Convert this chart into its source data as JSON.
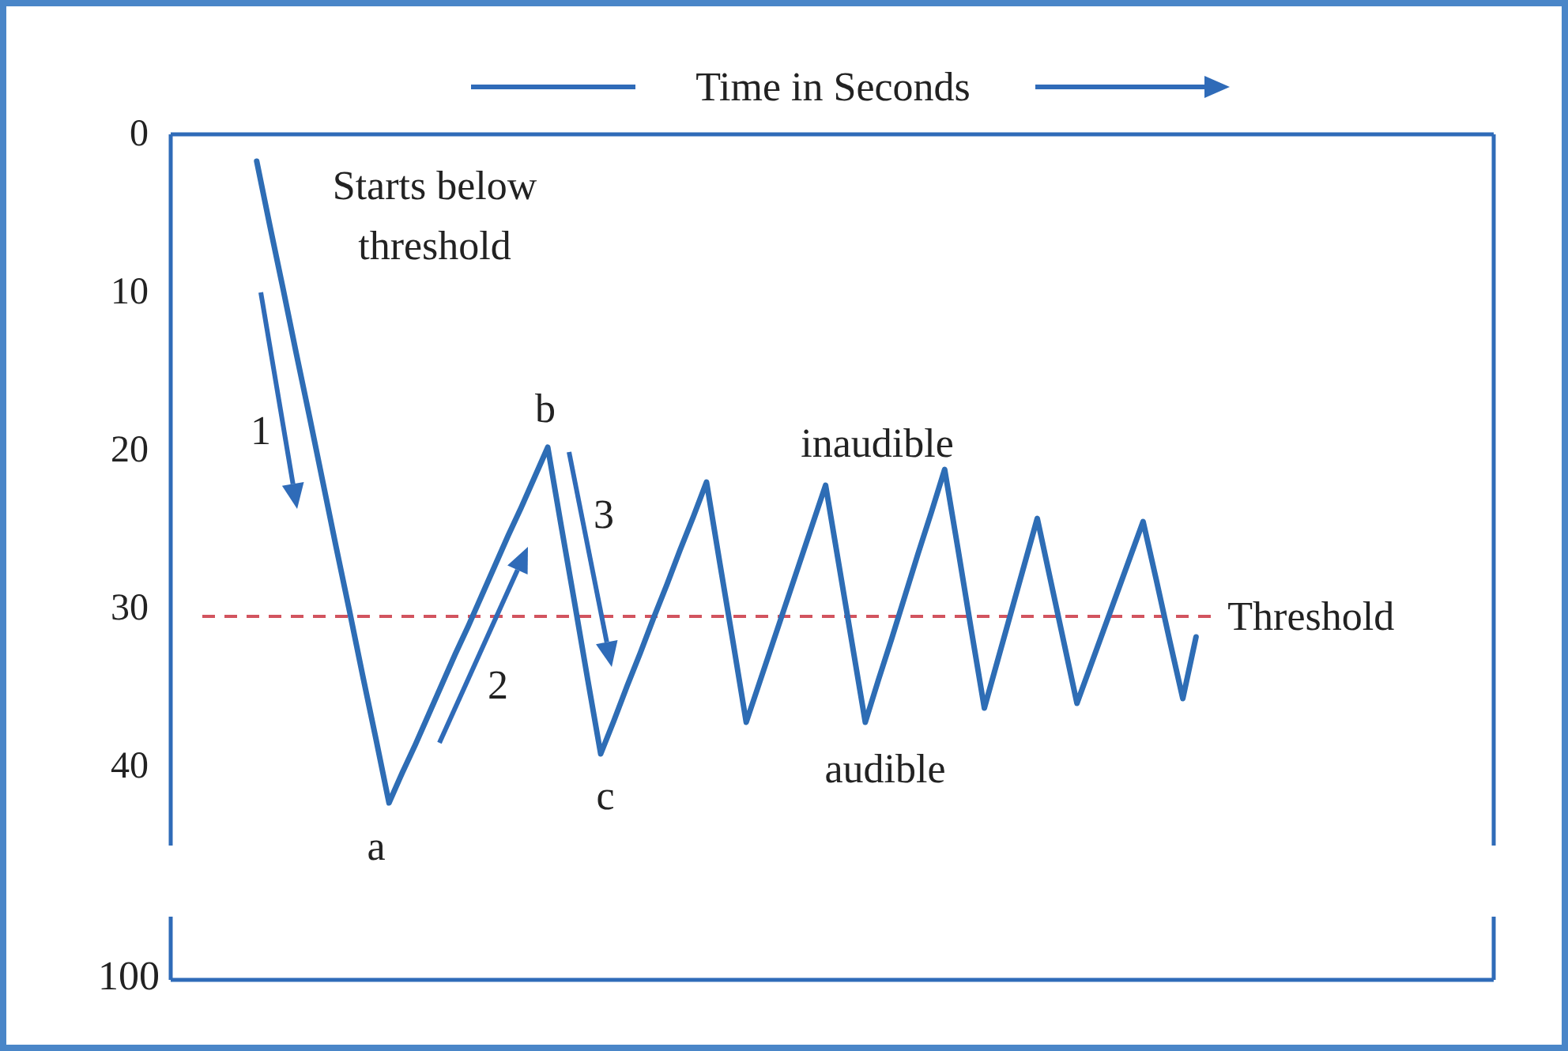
{
  "chart_data": {
    "type": "line",
    "xlabel": "Time in Seconds",
    "categories": [
      null,
      null,
      null,
      null,
      null,
      null,
      null,
      null,
      null,
      null,
      null,
      null,
      null,
      null,
      null,
      null,
      null,
      null,
      null,
      null,
      null,
      null,
      null,
      null,
      null,
      null,
      null,
      null,
      null,
      null,
      null,
      null,
      null,
      null,
      null,
      null,
      null,
      null,
      null,
      null,
      null,
      null,
      null,
      null,
      null,
      null,
      null,
      null,
      null,
      null,
      null,
      null,
      null,
      null,
      null,
      null,
      null,
      null,
      null,
      null,
      null,
      null,
      null,
      null,
      null,
      null,
      null,
      null,
      null,
      null,
      null,
      null,
      null,
      null,
      null,
      null,
      null,
      null,
      null,
      null,
      null,
      null,
      null,
      null,
      null,
      null,
      null,
      null,
      null,
      null,
      null,
      null,
      null,
      null,
      null,
      null,
      null,
      null,
      null,
      null
    ],
    "ylim": [
      45,
      0
    ],
    "yticks": [
      0,
      10,
      20,
      30,
      40
    ],
    "tick_labels": "y",
    "grid": false,
    "marker": "none",
    "line_style": "solid",
    "series": [
      {
        "color": "#2e6db5",
        "values": [
          null,
          null,
          null,
          null,
          null,
          null,
          1.7,
          5.8,
          9.8,
          13.9,
          17.9,
          22,
          26.1,
          30.1,
          34.2,
          38.2,
          42.3,
          40.4,
          38.6,
          36.7,
          34.8,
          32.9,
          31.1,
          29.2,
          27.3,
          25.4,
          23.6,
          21.7,
          19.8,
          24.7,
          29.5,
          34.4,
          39.2,
          37.1,
          34.9,
          32.8,
          30.6,
          28.5,
          26.3,
          24.2,
          22,
          27.1,
          32.1,
          37.2,
          34.7,
          32.2,
          29.7,
          27.2,
          24.7,
          22.2,
          27.2,
          32.2,
          37.2,
          34.5,
          31.9,
          29.2,
          26.5,
          23.9,
          21.2,
          26.2,
          31.3,
          36.3,
          33.3,
          30.3,
          27.3,
          24.3,
          28.2,
          32.1,
          36,
          33.7,
          31.4,
          29.1,
          26.8,
          24.5,
          28.2,
          32,
          35.7,
          31.8,
          null,
          null,
          null,
          null,
          null,
          null,
          null,
          null,
          null,
          null,
          null,
          null,
          null,
          null,
          null,
          null,
          null,
          null,
          null,
          null,
          null,
          null
        ]
      }
    ],
    "ref_lines": [
      {
        "axis": "y",
        "value": 30.5,
        "label": "Threshold",
        "color": "#d2545f",
        "line_style": "dashed"
      }
    ],
    "annotations": [
      "Starts below threshold",
      "1",
      "2",
      "3",
      "a",
      "b",
      "c",
      "inaudible",
      "audible",
      "100"
    ]
  }
}
